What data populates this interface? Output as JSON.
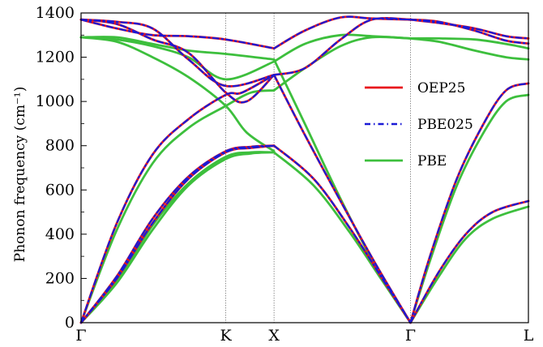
{
  "chart_data": {
    "type": "line",
    "title": "",
    "ylabel": "Phonon frequency (cm⁻¹)",
    "xlabel": "",
    "ylim": [
      0,
      1400
    ],
    "yticks": [
      0,
      200,
      400,
      600,
      800,
      1000,
      1200,
      1400
    ],
    "xlim": [
      0,
      1
    ],
    "kpoints": [
      {
        "label": "Γ",
        "x": 0.0
      },
      {
        "label": "K",
        "x": 0.3235
      },
      {
        "label": "X",
        "x": 0.4314
      },
      {
        "label": "Γ",
        "x": 0.7364
      },
      {
        "label": "L",
        "x": 1.0
      }
    ],
    "grid": false,
    "legend_position": "right",
    "colors": {
      "OEP25": "#e8141c",
      "PBE025": "#1a1ad6",
      "PBE": "#3dbf3d"
    },
    "series": [
      {
        "name": "OEP25",
        "style": "solid",
        "branches": [
          [
            [
              0,
              0
            ],
            [
              0.08,
              450
            ],
            [
              0.16,
              760
            ],
            [
              0.24,
              920
            ],
            [
              0.3235,
              1030
            ],
            [
              0.36,
              1040
            ],
            [
              0.4314,
              1120
            ]
          ],
          [
            [
              0,
              0
            ],
            [
              0.08,
              200
            ],
            [
              0.16,
              450
            ],
            [
              0.24,
              650
            ],
            [
              0.3235,
              770
            ],
            [
              0.38,
              790
            ],
            [
              0.4314,
              800
            ]
          ],
          [
            [
              0,
              0
            ],
            [
              0.08,
              210
            ],
            [
              0.16,
              470
            ],
            [
              0.24,
              660
            ],
            [
              0.3235,
              775
            ],
            [
              0.38,
              795
            ],
            [
              0.4314,
              800
            ]
          ],
          [
            [
              0,
              1370
            ],
            [
              0.08,
              1360
            ],
            [
              0.16,
              1330
            ],
            [
              0.24,
              1190
            ],
            [
              0.3235,
              1070
            ],
            [
              0.4314,
              1120
            ]
          ],
          [
            [
              0,
              1370
            ],
            [
              0.08,
              1330
            ],
            [
              0.16,
              1300
            ],
            [
              0.24,
              1295
            ],
            [
              0.3235,
              1280
            ],
            [
              0.4314,
              1240
            ]
          ],
          [
            [
              0,
              1370
            ],
            [
              0.08,
              1350
            ],
            [
              0.16,
              1280
            ],
            [
              0.24,
              1220
            ],
            [
              0.3235,
              1040
            ],
            [
              0.37,
              1000
            ],
            [
              0.4314,
              1120
            ]
          ],
          [
            [
              0.4314,
              1120
            ],
            [
              0.5,
              1150
            ],
            [
              0.58,
              1280
            ],
            [
              0.65,
              1370
            ],
            [
              0.7364,
              1370
            ]
          ],
          [
            [
              0.4314,
              1240
            ],
            [
              0.5,
              1320
            ],
            [
              0.58,
              1380
            ],
            [
              0.65,
              1375
            ],
            [
              0.7364,
              1370
            ]
          ],
          [
            [
              0.4314,
              800
            ],
            [
              0.52,
              650
            ],
            [
              0.6,
              430
            ],
            [
              0.67,
              210
            ],
            [
              0.7364,
              0
            ]
          ],
          [
            [
              0.4314,
              1120
            ],
            [
              0.5,
              850
            ],
            [
              0.58,
              550
            ],
            [
              0.66,
              260
            ],
            [
              0.7364,
              0
            ]
          ],
          [
            [
              0.7364,
              1370
            ],
            [
              0.8,
              1355
            ],
            [
              0.88,
              1330
            ],
            [
              0.95,
              1295
            ],
            [
              1.0,
              1285
            ]
          ],
          [
            [
              0.7364,
              1370
            ],
            [
              0.8,
              1360
            ],
            [
              0.88,
              1320
            ],
            [
              0.95,
              1275
            ],
            [
              1.0,
              1262
            ]
          ],
          [
            [
              0.7364,
              0
            ],
            [
              0.78,
              300
            ],
            [
              0.84,
              650
            ],
            [
              0.9,
              900
            ],
            [
              0.95,
              1050
            ],
            [
              1.0,
              1082
            ]
          ],
          [
            [
              0.7364,
              0
            ],
            [
              0.8,
              230
            ],
            [
              0.86,
              400
            ],
            [
              0.92,
              500
            ],
            [
              1.0,
              550
            ]
          ]
        ]
      },
      {
        "name": "PBE025",
        "style": "dashdot",
        "branches": "same-as-OEP25"
      },
      {
        "name": "PBE",
        "style": "solid",
        "branches": [
          [
            [
              0,
              0
            ],
            [
              0.08,
              420
            ],
            [
              0.16,
              720
            ],
            [
              0.24,
              880
            ],
            [
              0.3235,
              980
            ],
            [
              0.38,
              1040
            ],
            [
              0.4314,
              1050
            ]
          ],
          [
            [
              0,
              0
            ],
            [
              0.08,
              180
            ],
            [
              0.16,
              420
            ],
            [
              0.24,
              620
            ],
            [
              0.3235,
              740
            ],
            [
              0.38,
              765
            ],
            [
              0.4314,
              770
            ]
          ],
          [
            [
              0,
              0
            ],
            [
              0.08,
              190
            ],
            [
              0.16,
              440
            ],
            [
              0.24,
              630
            ],
            [
              0.3235,
              750
            ],
            [
              0.38,
              770
            ],
            [
              0.4314,
              770
            ]
          ],
          [
            [
              0,
              1290
            ],
            [
              0.08,
              1280
            ],
            [
              0.16,
              1250
            ],
            [
              0.24,
              1200
            ],
            [
              0.3235,
              1100
            ],
            [
              0.4314,
              1180
            ]
          ],
          [
            [
              0,
              1290
            ],
            [
              0.08,
              1290
            ],
            [
              0.16,
              1260
            ],
            [
              0.24,
              1230
            ],
            [
              0.3235,
              1215
            ],
            [
              0.4314,
              1190
            ]
          ],
          [
            [
              0,
              1290
            ],
            [
              0.08,
              1270
            ],
            [
              0.16,
              1200
            ],
            [
              0.24,
              1110
            ],
            [
              0.3235,
              980
            ],
            [
              0.37,
              860
            ],
            [
              0.4314,
              775
            ]
          ],
          [
            [
              0.4314,
              1050
            ],
            [
              0.5,
              1150
            ],
            [
              0.58,
              1250
            ],
            [
              0.65,
              1290
            ],
            [
              0.7364,
              1285
            ]
          ],
          [
            [
              0.4314,
              1180
            ],
            [
              0.5,
              1260
            ],
            [
              0.58,
              1300
            ],
            [
              0.65,
              1295
            ],
            [
              0.7364,
              1285
            ]
          ],
          [
            [
              0.4314,
              770
            ],
            [
              0.52,
              620
            ],
            [
              0.6,
              410
            ],
            [
              0.67,
              200
            ],
            [
              0.7364,
              0
            ]
          ],
          [
            [
              0.4314,
              1190
            ],
            [
              0.5,
              900
            ],
            [
              0.58,
              560
            ],
            [
              0.66,
              250
            ],
            [
              0.7364,
              0
            ]
          ],
          [
            [
              0.7364,
              1285
            ],
            [
              0.8,
              1285
            ],
            [
              0.88,
              1280
            ],
            [
              0.95,
              1260
            ],
            [
              1.0,
              1240
            ]
          ],
          [
            [
              0.7364,
              1285
            ],
            [
              0.8,
              1270
            ],
            [
              0.88,
              1230
            ],
            [
              0.95,
              1200
            ],
            [
              1.0,
              1190
            ]
          ],
          [
            [
              0.7364,
              0
            ],
            [
              0.78,
              280
            ],
            [
              0.84,
              620
            ],
            [
              0.9,
              860
            ],
            [
              0.95,
              1000
            ],
            [
              1.0,
              1030
            ]
          ],
          [
            [
              0.7364,
              0
            ],
            [
              0.8,
              210
            ],
            [
              0.86,
              380
            ],
            [
              0.92,
              470
            ],
            [
              1.0,
              525
            ]
          ]
        ]
      }
    ]
  }
}
